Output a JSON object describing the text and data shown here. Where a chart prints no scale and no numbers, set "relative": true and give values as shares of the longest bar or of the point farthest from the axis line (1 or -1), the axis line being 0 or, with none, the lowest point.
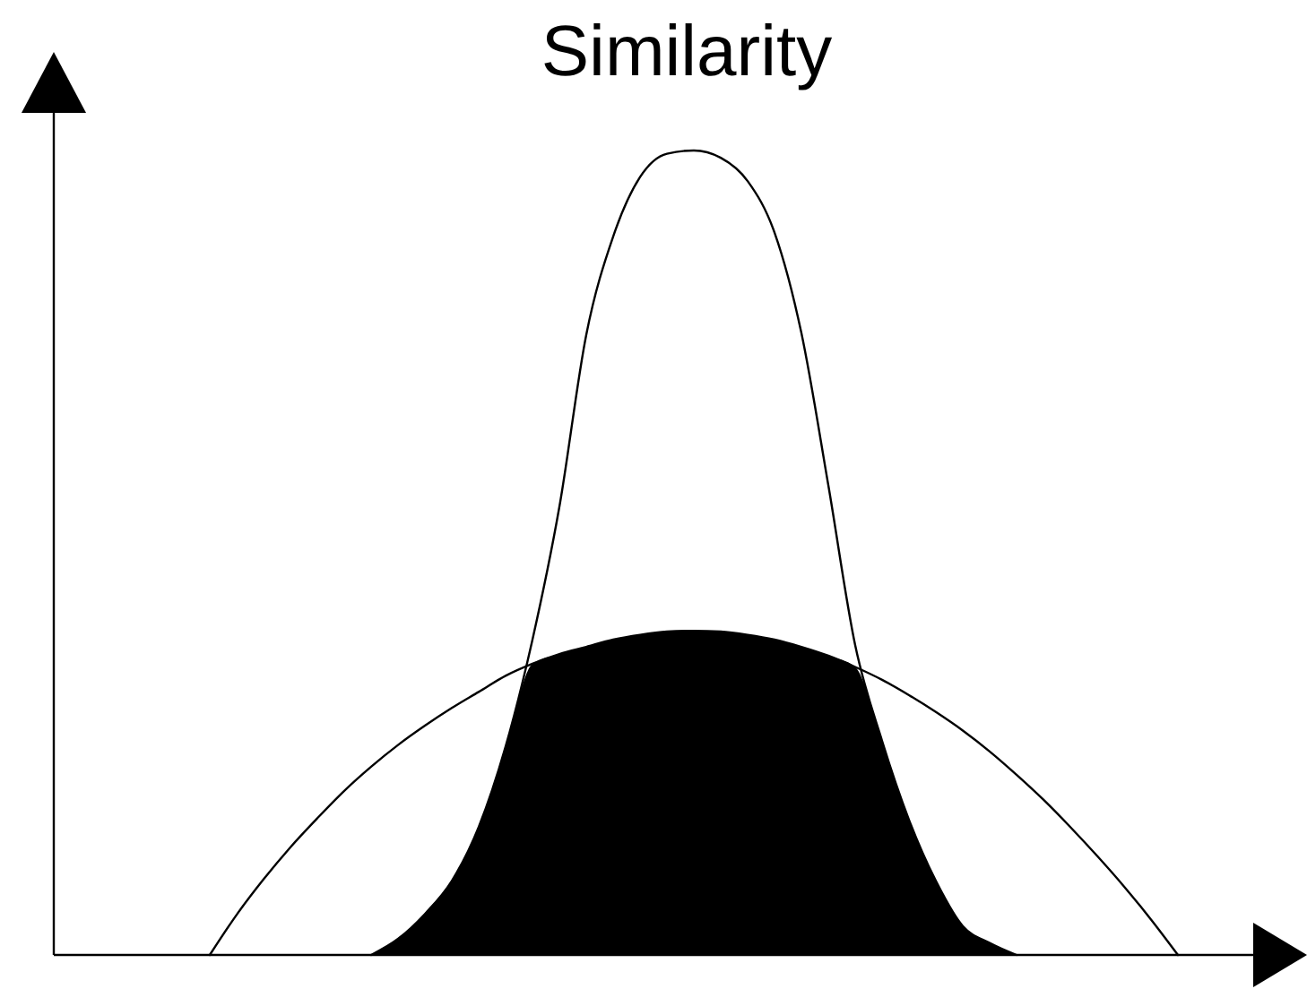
{
  "chart_data": {
    "type": "line",
    "title": "Similarity",
    "relative": true,
    "categories": [
      null,
      null,
      null,
      null,
      null,
      null,
      null,
      null,
      null,
      null,
      null,
      null,
      null,
      null,
      null,
      null,
      null,
      null,
      null,
      null,
      null,
      null,
      null,
      null,
      null,
      null,
      null,
      null,
      null,
      null,
      null,
      null,
      null,
      null,
      null,
      null,
      null
    ],
    "series": [
      {
        "type": "area",
        "color": "#000000",
        "values": [
          null,
          null,
          null,
          null,
          null,
          null,
          0,
          0.02,
          0.051,
          0.092,
          0.159,
          0.259,
          0.362,
          0.374,
          0.383,
          0.392,
          0.398,
          0.402,
          0.403,
          0.402,
          0.398,
          0.392,
          0.383,
          0.372,
          0.358,
          0.266,
          0.168,
          0.092,
          0.036,
          0.015,
          0,
          null,
          null,
          null,
          null,
          null,
          null
        ]
      },
      {
        "type": "line",
        "color": "#000000",
        "values": [
          null,
          null,
          null,
          null,
          null,
          null,
          0,
          0.02,
          0.051,
          0.092,
          0.159,
          0.259,
          0.392,
          0.557,
          0.771,
          0.893,
          0.967,
          0.996,
          1,
          0.991,
          0.962,
          0.898,
          0.773,
          0.584,
          0.385,
          0.266,
          0.168,
          0.092,
          0.036,
          0.015,
          0,
          null,
          null,
          null,
          null,
          null,
          null
        ]
      },
      {
        "type": "line",
        "color": "#000000",
        "values": [
          0,
          0.05,
          0.094,
          0.134,
          0.17,
          0.204,
          0.234,
          0.261,
          0.285,
          0.307,
          0.327,
          0.347,
          0.362,
          0.374,
          0.383,
          0.392,
          0.398,
          0.402,
          0.403,
          0.402,
          0.398,
          0.392,
          0.383,
          0.372,
          0.358,
          0.342,
          0.323,
          0.302,
          0.279,
          0.253,
          0.224,
          0.193,
          0.159,
          0.123,
          0.085,
          0.044,
          0
        ]
      }
    ]
  }
}
